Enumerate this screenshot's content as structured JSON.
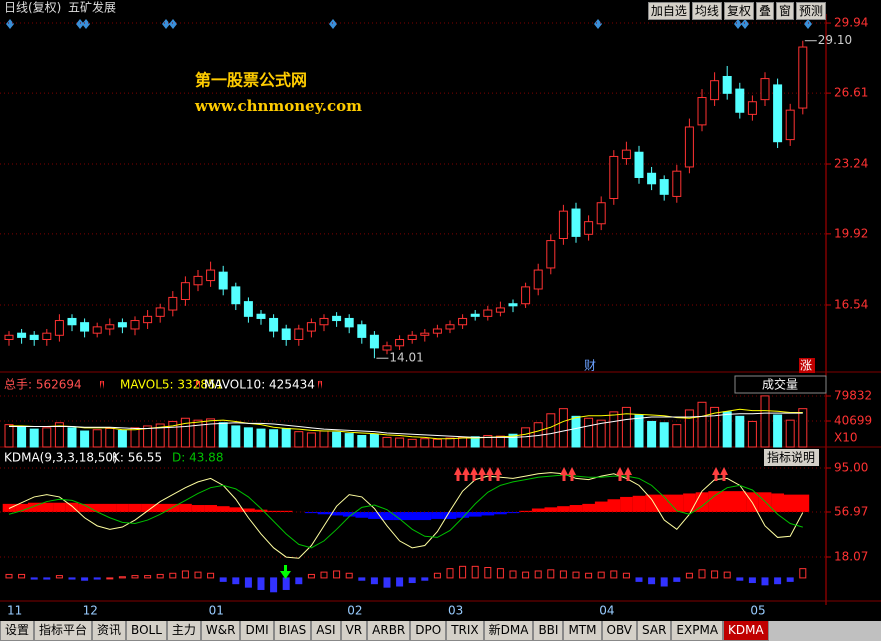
{
  "ui": {
    "period": "日线(复权)",
    "stock": "五矿发展",
    "buttons": [
      "加自选",
      "均线",
      "复权",
      "叠",
      "窗",
      "预测"
    ],
    "watermark": [
      "第一股票公式网",
      "www.chnmoney.com"
    ],
    "markers": [
      "财",
      "涨"
    ],
    "tabs": [
      "设置",
      "指标平台",
      "资讯",
      "BOLL",
      "主力",
      "W&R",
      "DMI",
      "BIAS",
      "ASI",
      "VR",
      "ARBR",
      "DPO",
      "TRIX",
      "新DMA",
      "BBI",
      "MTM",
      "OBV",
      "SAR",
      "EXPMA",
      "KDMA"
    ]
  },
  "chart_data": [
    {
      "type": "candlestick",
      "up_color": "#ff3232",
      "down_color": "#54ffff",
      "grid": true,
      "categories": [
        "11",
        null,
        null,
        null,
        null,
        null,
        "12",
        null,
        null,
        null,
        null,
        null,
        null,
        null,
        null,
        null,
        "01",
        null,
        null,
        null,
        null,
        null,
        null,
        null,
        null,
        null,
        null,
        "02",
        null,
        null,
        null,
        null,
        null,
        null,
        null,
        "03",
        null,
        null,
        null,
        null,
        null,
        null,
        null,
        null,
        null,
        null,
        null,
        "04",
        null,
        null,
        null,
        null,
        null,
        null,
        null,
        null,
        null,
        null,
        null,
        "05",
        null,
        null,
        null,
        null
      ],
      "open": [
        14.9,
        15.2,
        15.1,
        14.9,
        15.1,
        15.9,
        15.7,
        15.2,
        15.4,
        15.7,
        15.4,
        15.7,
        16.0,
        16.3,
        16.8,
        17.5,
        17.7,
        18.1,
        17.4,
        16.7,
        16.1,
        15.9,
        15.4,
        14.9,
        15.3,
        15.6,
        16.0,
        15.9,
        15.6,
        15.1,
        14.4,
        14.6,
        14.9,
        15.1,
        15.2,
        15.4,
        15.6,
        16.1,
        16.0,
        16.2,
        16.6,
        16.6,
        17.3,
        18.3,
        19.7,
        21.1,
        19.9,
        20.4,
        21.6,
        23.5,
        23.8,
        22.8,
        22.5,
        21.7,
        23.1,
        25.1,
        26.3,
        27.4,
        26.8,
        25.6,
        26.3,
        27.0,
        24.4,
        25.9
      ],
      "high": [
        15.3,
        15.4,
        15.3,
        15.4,
        16.1,
        16.1,
        15.9,
        15.7,
        15.9,
        15.9,
        16.0,
        16.3,
        16.6,
        17.2,
        17.9,
        18.2,
        18.6,
        18.4,
        17.6,
        16.9,
        16.3,
        16.1,
        15.6,
        15.6,
        15.9,
        16.1,
        16.2,
        16.1,
        15.8,
        15.3,
        14.8,
        15.1,
        15.3,
        15.4,
        15.6,
        15.8,
        16.1,
        16.3,
        16.5,
        16.7,
        16.8,
        17.6,
        18.5,
        19.9,
        21.3,
        21.4,
        20.8,
        21.7,
        23.9,
        24.3,
        24.1,
        23.1,
        22.7,
        23.2,
        25.4,
        26.8,
        27.6,
        27.9,
        27.1,
        26.5,
        27.6,
        27.3,
        26.1,
        29.1
      ],
      "low": [
        14.6,
        14.7,
        14.6,
        14.6,
        14.8,
        15.3,
        15.0,
        15.0,
        15.1,
        15.2,
        15.1,
        15.4,
        15.7,
        16.0,
        16.5,
        17.2,
        17.4,
        17.0,
        16.3,
        15.7,
        15.6,
        15.0,
        14.6,
        14.6,
        15.0,
        15.3,
        15.5,
        15.2,
        14.7,
        14.01,
        14.2,
        14.4,
        14.7,
        14.8,
        15.0,
        15.2,
        15.4,
        15.8,
        15.8,
        16.0,
        16.2,
        16.4,
        17.0,
        18.0,
        19.4,
        19.5,
        19.6,
        20.1,
        21.3,
        23.2,
        22.3,
        22.0,
        21.5,
        21.4,
        22.8,
        24.8,
        26.0,
        26.3,
        25.4,
        25.3,
        26.0,
        24.0,
        24.1,
        25.6
      ],
      "close": [
        15.1,
        15.0,
        14.9,
        15.2,
        15.8,
        15.6,
        15.3,
        15.5,
        15.6,
        15.5,
        15.8,
        16.0,
        16.4,
        16.9,
        17.6,
        17.9,
        18.2,
        17.3,
        16.6,
        16.0,
        15.9,
        15.3,
        14.9,
        15.4,
        15.7,
        15.9,
        15.8,
        15.5,
        15.0,
        14.5,
        14.6,
        14.9,
        15.1,
        15.2,
        15.4,
        15.6,
        15.9,
        16.0,
        16.3,
        16.4,
        16.5,
        17.4,
        18.2,
        19.6,
        21.0,
        19.8,
        20.5,
        21.4,
        23.6,
        23.9,
        22.6,
        22.3,
        21.8,
        22.9,
        25.0,
        26.4,
        27.2,
        26.6,
        25.7,
        26.2,
        27.3,
        24.3,
        25.8,
        28.8
      ],
      "ylim": [
        13.45,
        30.37
      ],
      "yticks": [
        16.54,
        19.92,
        23.24,
        26.61,
        29.94
      ],
      "annotations": [
        "29.10",
        "14.01"
      ]
    },
    {
      "type": "bar",
      "indicator": "成交量",
      "volume_label": "总手: 562694",
      "unit_label": "X10",
      "ylim": [
        0,
        86100
      ],
      "yticks": [
        40699,
        79832
      ],
      "values": [
        35000,
        32000,
        28000,
        30000,
        38000,
        30000,
        25000,
        27000,
        29000,
        26000,
        30000,
        33000,
        36000,
        40000,
        45000,
        42000,
        44000,
        38000,
        33000,
        30000,
        28000,
        27000,
        29000,
        24000,
        22000,
        25000,
        23000,
        21000,
        18000,
        20000,
        15000,
        14000,
        12000,
        13000,
        12000,
        14000,
        15000,
        16000,
        18000,
        17000,
        20000,
        30000,
        38000,
        52000,
        60000,
        48000,
        45000,
        42000,
        55000,
        62000,
        50000,
        40000,
        38000,
        35000,
        58000,
        70000,
        62000,
        55000,
        48000,
        40000,
        80000,
        50000,
        42000,
        60000
      ],
      "series": [
        {
          "name": "MAVOL5: 332851",
          "color": "#ffff00",
          "values": [
            33000,
            33000,
            32000,
            32000,
            33000,
            32000,
            30000,
            30000,
            30000,
            27000,
            27000,
            29000,
            31000,
            33000,
            37000,
            39000,
            41000,
            42000,
            40000,
            37000,
            35000,
            31000,
            29000,
            28000,
            26000,
            25000,
            25000,
            23000,
            22000,
            21000,
            19000,
            18000,
            16000,
            15000,
            13000,
            13000,
            14000,
            14000,
            15000,
            16000,
            17000,
            20000,
            25000,
            31000,
            40000,
            46000,
            49000,
            49000,
            50000,
            52000,
            51000,
            50000,
            49000,
            46000,
            45000,
            48000,
            53000,
            56000,
            59000,
            57000,
            57000,
            56000,
            54000,
            54000
          ]
        },
        {
          "name": "MAVOL10: 425434",
          "color": "#ffffff",
          "values": [
            32000,
            32000,
            32000,
            32000,
            32000,
            32000,
            31000,
            31000,
            31000,
            30000,
            29000,
            29000,
            30000,
            31000,
            32000,
            34000,
            36000,
            37000,
            38000,
            37000,
            37000,
            36000,
            34000,
            32000,
            30000,
            28000,
            27000,
            26000,
            25000,
            24000,
            22000,
            21000,
            20000,
            19000,
            18000,
            17000,
            16000,
            15000,
            15000,
            15000,
            15000,
            16000,
            18000,
            21000,
            25000,
            29000,
            33000,
            37000,
            40000,
            43000,
            45000,
            47000,
            47000,
            47000,
            47000,
            48000,
            49000,
            51000,
            52000,
            52000,
            53000,
            53000,
            53000,
            53000
          ]
        }
      ]
    },
    {
      "type": "line",
      "title": "KDMA(9,3,3,18,50)",
      "help": "指标说明",
      "ylim": [
        -19.1,
        100.2
      ],
      "yticks": [
        18.07,
        56.97,
        {
          "value": 95,
          "label": "95.00"
        }
      ],
      "series": [
        {
          "name": "K: 56.55",
          "color": "#ffffa0",
          "values": [
            60,
            65,
            70,
            72,
            70,
            62,
            52,
            45,
            42,
            44,
            50,
            58,
            66,
            72,
            78,
            83,
            86,
            80,
            68,
            52,
            38,
            26,
            18,
            17,
            28,
            45,
            62,
            72,
            70,
            60,
            45,
            32,
            26,
            28,
            40,
            58,
            75,
            85,
            88,
            87,
            86,
            88,
            90,
            91,
            90,
            86,
            85,
            88,
            90,
            86,
            80,
            68,
            50,
            42,
            55,
            75,
            85,
            86,
            80,
            65,
            45,
            35,
            36,
            56.55
          ]
        },
        {
          "name": "D: 43.88",
          "color": "#00c000",
          "values": [
            55,
            58,
            62,
            66,
            68,
            67,
            63,
            57,
            52,
            48,
            47,
            50,
            55,
            61,
            67,
            73,
            78,
            80,
            77,
            70,
            60,
            49,
            38,
            29,
            26,
            32,
            42,
            53,
            61,
            63,
            59,
            51,
            42,
            36,
            35,
            41,
            52,
            64,
            74,
            80,
            83,
            85,
            87,
            88,
            89,
            88,
            87,
            87,
            88,
            88,
            86,
            80,
            70,
            58,
            55,
            62,
            71,
            78,
            80,
            76,
            66,
            55,
            47,
            43.88
          ]
        }
      ],
      "band": {
        "up_color": "#ff0000",
        "down_color": "#0000ff",
        "values": [
          64,
          64,
          65,
          65,
          65,
          65,
          64,
          64,
          64,
          64,
          64,
          64,
          64,
          64,
          64,
          63,
          63,
          62,
          61,
          60,
          59,
          58,
          58,
          57,
          56,
          55,
          54,
          53,
          52,
          51,
          50,
          50,
          50,
          50,
          51,
          51,
          52,
          53,
          54,
          55,
          56,
          58,
          60,
          61,
          62,
          63,
          64,
          66,
          68,
          70,
          71,
          72,
          72,
          72,
          73,
          74,
          75,
          75,
          75,
          74,
          74,
          73,
          72,
          72
        ]
      },
      "histogram": {
        "up_color": "#ff3232",
        "down_color": "#3232ff",
        "values": [
          3,
          3,
          -1,
          -1,
          2,
          -1,
          -2,
          -1,
          0,
          1,
          2,
          2,
          3,
          4,
          6,
          5,
          4,
          -3,
          -5,
          -8,
          -10,
          -12,
          -10,
          -5,
          3,
          5,
          6,
          4,
          -2,
          -5,
          -8,
          -7,
          -4,
          -2,
          4,
          8,
          10,
          10,
          9,
          8,
          6,
          5,
          6,
          7,
          6,
          5,
          4,
          5,
          6,
          4,
          -3,
          -5,
          -7,
          -3,
          4,
          7,
          6,
          5,
          -2,
          -4,
          -6,
          -5,
          -3,
          8
        ]
      }
    }
  ]
}
